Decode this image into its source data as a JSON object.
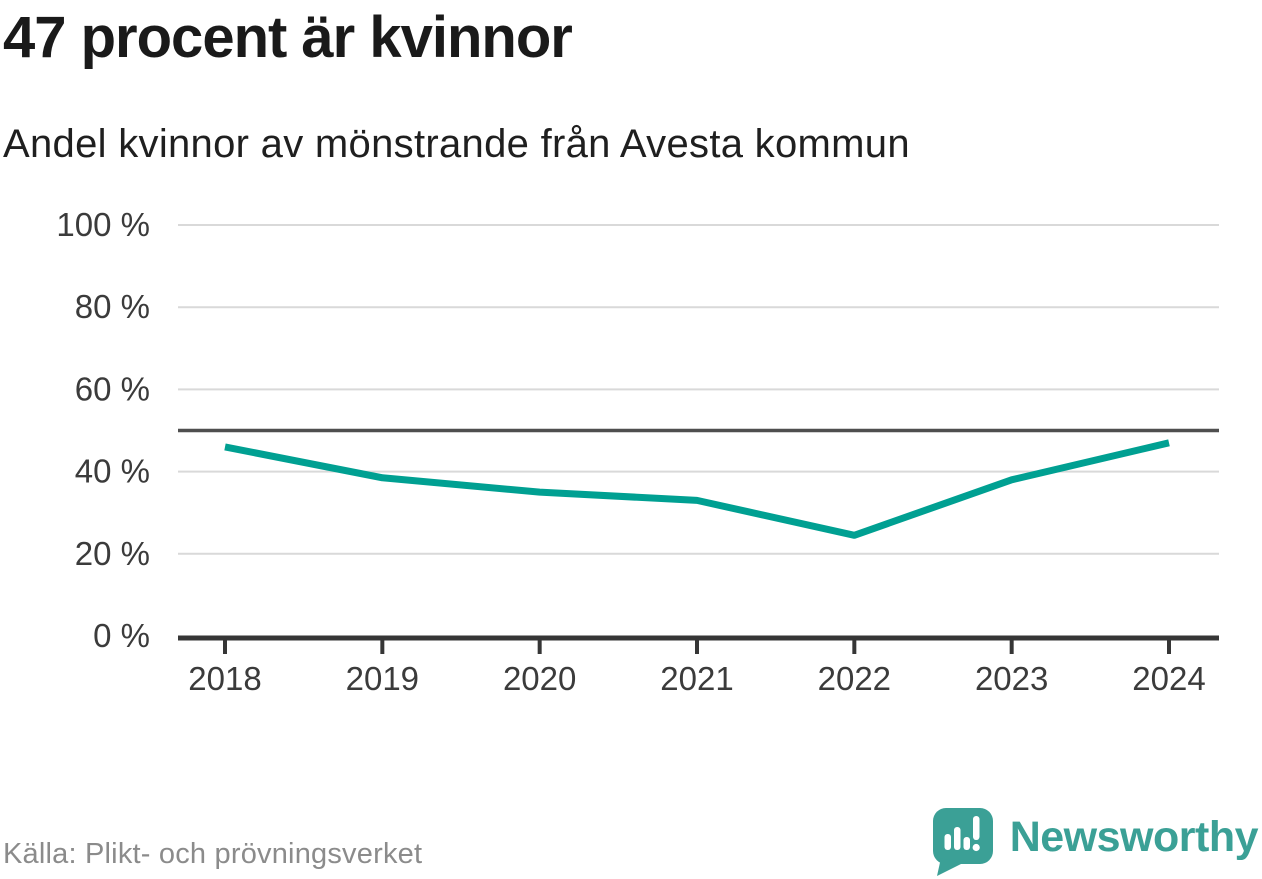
{
  "header": {
    "title": "47 procent är kvinnor",
    "subtitle": "Andel kvinnor av mönstrande från Avesta kommun"
  },
  "footer": {
    "source": "Källa: Plikt- och prövningsverket",
    "logo_text": "Newsworthy"
  },
  "colors": {
    "line": "#00a092",
    "reference_line": "#4f4f4f",
    "grid": "#d9d9d9",
    "axis": "#363636",
    "tick_label": "#3b3b3b",
    "title": "#1a1a1a",
    "source_text": "#8b8b8b",
    "logo": "#3ba096"
  },
  "chart_data": {
    "type": "line",
    "title": "47 procent är kvinnor",
    "subtitle": "Andel kvinnor av mönstrande från Avesta kommun",
    "x": [
      "2018",
      "2019",
      "2020",
      "2021",
      "2022",
      "2023",
      "2024"
    ],
    "series": [
      {
        "name": "Andel kvinnor av mönstrande",
        "values": [
          46,
          38.5,
          35,
          33,
          24.5,
          38,
          47
        ]
      }
    ],
    "reference_line": {
      "value": 50
    },
    "ylim": [
      0,
      100
    ],
    "yticks": [
      {
        "value": 0,
        "label": "0 %"
      },
      {
        "value": 20,
        "label": "20 %"
      },
      {
        "value": 40,
        "label": "40 %"
      },
      {
        "value": 60,
        "label": "60 %"
      },
      {
        "value": 80,
        "label": "80 %"
      },
      {
        "value": 100,
        "label": "100 %"
      }
    ],
    "grid": "horizontal",
    "legend": "none",
    "source": "Källa: Plikt- och prövningsverket"
  }
}
